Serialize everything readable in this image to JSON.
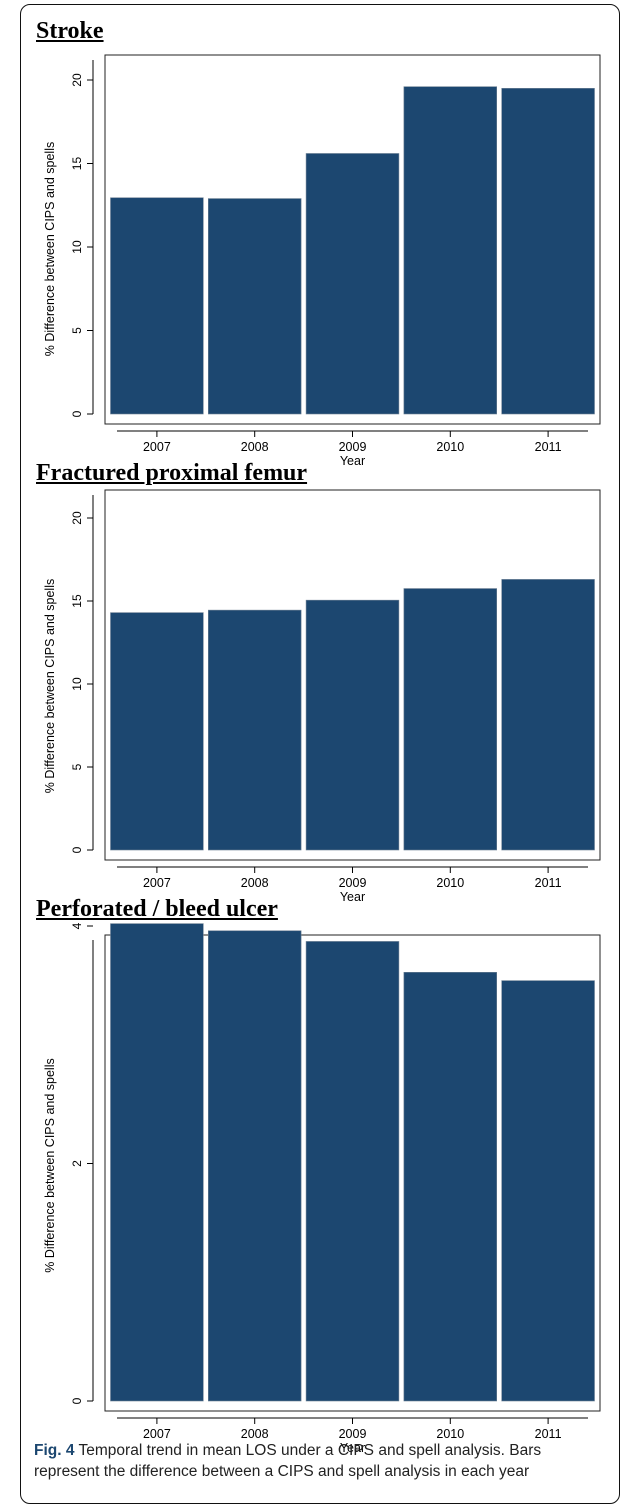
{
  "chart_data": [
    {
      "type": "bar",
      "title": "Stroke",
      "categories": [
        "2007",
        "2008",
        "2009",
        "2010",
        "2011"
      ],
      "values": [
        12.95,
        12.9,
        15.6,
        19.6,
        19.5
      ],
      "xlabel": "Year",
      "ylabel": "% Difference between CIPS and spells",
      "ylim": [
        0,
        20
      ],
      "yticks": [
        0,
        5,
        10,
        15,
        20
      ],
      "bar_color": "#1c4770",
      "grid": false
    },
    {
      "type": "bar",
      "title": "Fractured proximal femur",
      "categories": [
        "2007",
        "2008",
        "2009",
        "2010",
        "2011"
      ],
      "values": [
        14.3,
        14.45,
        15.05,
        15.75,
        16.3
      ],
      "xlabel": "Year",
      "ylabel": "% Difference between CIPS and spells",
      "ylim": [
        0,
        20
      ],
      "yticks": [
        0,
        5,
        10,
        15,
        20
      ],
      "bar_color": "#1c4770",
      "grid": false
    },
    {
      "type": "bar",
      "title": "Perforated / bleed ulcer",
      "categories": [
        "2007",
        "2008",
        "2009",
        "2010",
        "2011"
      ],
      "values": [
        4.02,
        3.96,
        3.87,
        3.61,
        3.54
      ],
      "xlabel": "Year",
      "ylabel": "% Difference between CIPS and spells",
      "ylim": [
        0,
        4
      ],
      "yticks": [
        0,
        2,
        4
      ],
      "bar_color": "#1c4770",
      "grid": false
    }
  ],
  "caption": {
    "label": "Fig. 4",
    "text": " Temporal trend in mean LOS under a CIPS and spell analysis. Bars represent the difference between a CIPS and spell analysis in each year"
  }
}
